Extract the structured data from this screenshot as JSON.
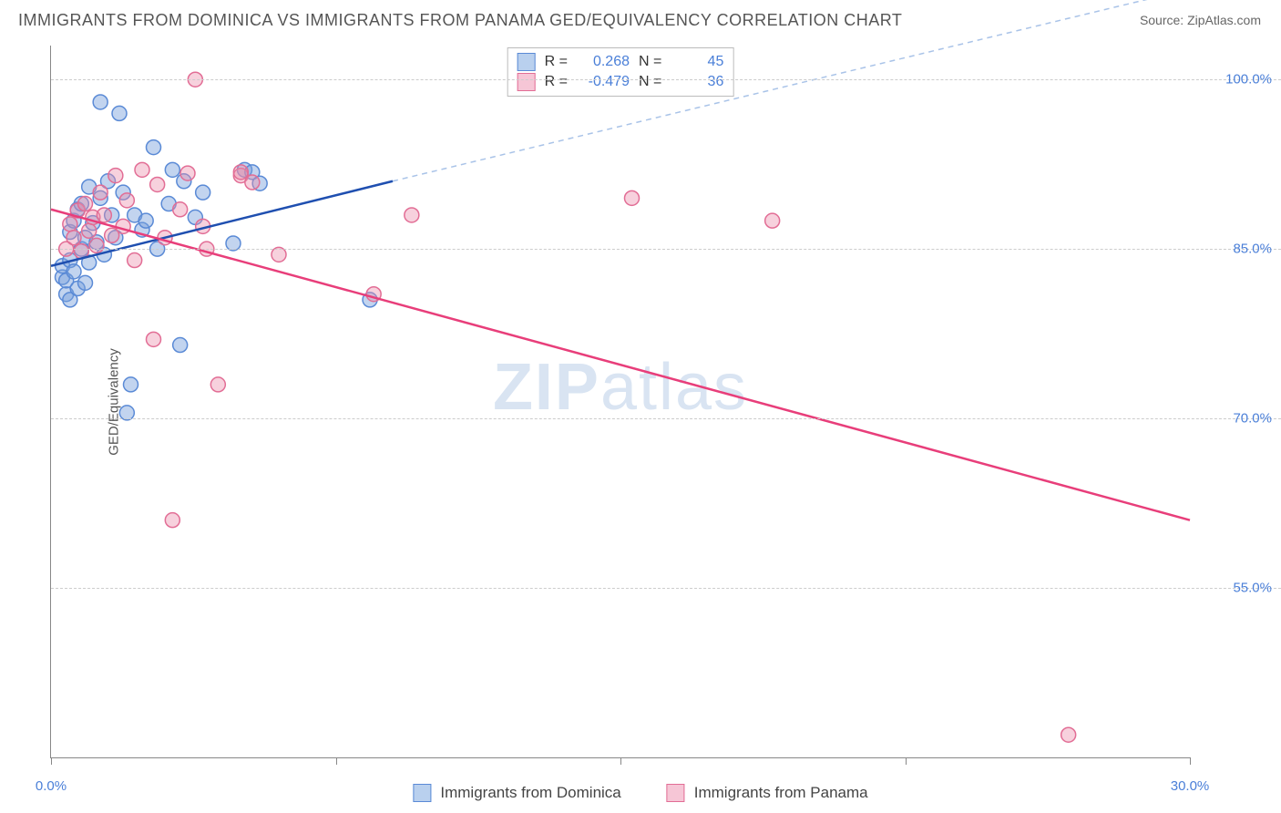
{
  "title": "IMMIGRANTS FROM DOMINICA VS IMMIGRANTS FROM PANAMA GED/EQUIVALENCY CORRELATION CHART",
  "source": "Source: ZipAtlas.com",
  "ylabel": "GED/Equivalency",
  "watermark_bold": "ZIP",
  "watermark_light": "atlas",
  "chart": {
    "type": "scatter",
    "xlim": [
      0,
      30
    ],
    "ylim": [
      40,
      103
    ],
    "x_ticks": [
      0,
      7.5,
      15,
      22.5,
      30
    ],
    "x_tick_labels": [
      "0.0%",
      "",
      "",
      "",
      "30.0%"
    ],
    "y_gridlines": [
      55,
      70,
      85,
      100
    ],
    "y_tick_labels": [
      "55.0%",
      "70.0%",
      "85.0%",
      "100.0%"
    ],
    "background_color": "#ffffff",
    "grid_color": "#cccccc",
    "axis_color": "#888888",
    "marker_radius": 8,
    "marker_stroke_width": 1.5,
    "series": [
      {
        "key": "dominica",
        "label": "Immigrants from Dominica",
        "fill": "rgba(120,160,220,0.45)",
        "stroke": "#5a8ad6",
        "swatch_fill": "#b9d0ee",
        "swatch_border": "#5a8ad6",
        "R": "0.268",
        "N": "45",
        "trend": {
          "x1": 0,
          "y1": 83.5,
          "x2": 9,
          "y2": 91,
          "stroke": "#1f4fb0",
          "width": 2.5,
          "dash_x2": 30,
          "dash_y2": 108,
          "dash_stroke": "#a9c3e8"
        },
        "points": [
          [
            0.3,
            82.5
          ],
          [
            0.3,
            83.5
          ],
          [
            0.4,
            81
          ],
          [
            0.4,
            82.2
          ],
          [
            0.5,
            84
          ],
          [
            0.5,
            80.5
          ],
          [
            0.5,
            86.5
          ],
          [
            0.6,
            83
          ],
          [
            0.6,
            87.5
          ],
          [
            0.7,
            81.5
          ],
          [
            0.7,
            88.5
          ],
          [
            0.8,
            85
          ],
          [
            0.8,
            89
          ],
          [
            0.9,
            82
          ],
          [
            0.9,
            86
          ],
          [
            1.0,
            90.5
          ],
          [
            1.0,
            83.8
          ],
          [
            1.1,
            87.3
          ],
          [
            1.2,
            85.6
          ],
          [
            1.3,
            89.5
          ],
          [
            1.3,
            98
          ],
          [
            1.4,
            84.5
          ],
          [
            1.5,
            91
          ],
          [
            1.6,
            88
          ],
          [
            1.7,
            86
          ],
          [
            1.8,
            97
          ],
          [
            1.9,
            90
          ],
          [
            2.1,
            73
          ],
          [
            2.2,
            88
          ],
          [
            2.4,
            86.7
          ],
          [
            2.5,
            87.5
          ],
          [
            2.7,
            94
          ],
          [
            2.8,
            85
          ],
          [
            3.1,
            89
          ],
          [
            3.2,
            92
          ],
          [
            3.4,
            76.5
          ],
          [
            3.5,
            91
          ],
          [
            3.8,
            87.8
          ],
          [
            4.0,
            90
          ],
          [
            4.8,
            85.5
          ],
          [
            5.1,
            92
          ],
          [
            5.3,
            91.8
          ],
          [
            5.5,
            90.8
          ],
          [
            8.4,
            80.5
          ],
          [
            2.0,
            70.5
          ]
        ]
      },
      {
        "key": "panama",
        "label": "Immigrants from Panama",
        "fill": "rgba(235,140,170,0.40)",
        "stroke": "#e26d95",
        "swatch_fill": "#f6c6d6",
        "swatch_border": "#e26d95",
        "R": "-0.479",
        "N": "36",
        "trend": {
          "x1": 0,
          "y1": 88.5,
          "x2": 30,
          "y2": 61,
          "stroke": "#e83e7a",
          "width": 2.5
        },
        "points": [
          [
            0.4,
            85
          ],
          [
            0.5,
            87.2
          ],
          [
            0.6,
            86
          ],
          [
            0.7,
            88.4
          ],
          [
            0.8,
            84.8
          ],
          [
            0.9,
            89
          ],
          [
            1.0,
            86.6
          ],
          [
            1.1,
            87.8
          ],
          [
            1.2,
            85.3
          ],
          [
            1.3,
            90
          ],
          [
            1.4,
            88
          ],
          [
            1.6,
            86.2
          ],
          [
            1.7,
            91.5
          ],
          [
            1.9,
            87
          ],
          [
            2.0,
            89.3
          ],
          [
            2.2,
            84
          ],
          [
            2.4,
            92
          ],
          [
            2.7,
            77
          ],
          [
            2.8,
            90.7
          ],
          [
            3.0,
            86
          ],
          [
            3.2,
            61
          ],
          [
            3.4,
            88.5
          ],
          [
            3.6,
            91.7
          ],
          [
            3.8,
            100
          ],
          [
            4.1,
            85
          ],
          [
            4.4,
            73
          ],
          [
            5.0,
            91.5
          ],
          [
            5.0,
            91.8
          ],
          [
            5.3,
            90.9
          ],
          [
            6.0,
            84.5
          ],
          [
            8.5,
            81
          ],
          [
            9.5,
            88
          ],
          [
            15.3,
            89.5
          ],
          [
            19.0,
            87.5
          ],
          [
            26.8,
            42
          ],
          [
            4.0,
            87
          ]
        ]
      }
    ]
  },
  "legend_top_labels": {
    "R": "R =",
    "N": "N ="
  }
}
